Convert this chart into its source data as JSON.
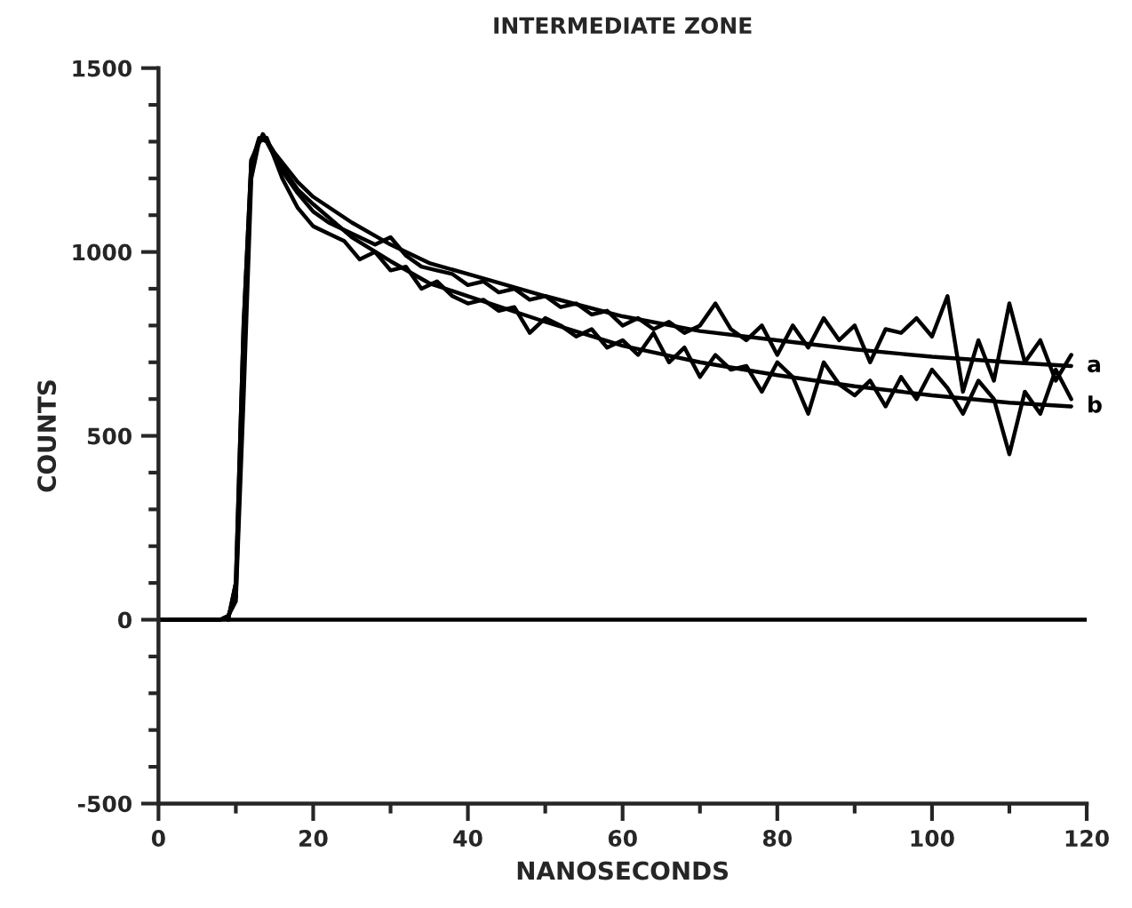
{
  "chart_data": {
    "type": "line",
    "title": "INTERMEDIATE ZONE",
    "xlabel": "NANOSECONDS",
    "ylabel": "COUNTS",
    "xlim": [
      0,
      120
    ],
    "ylim": [
      -500,
      1500
    ],
    "xticks": [
      0,
      {
        "value": 10,
        "label": null
      },
      20,
      {
        "value": 30,
        "label": null
      },
      40,
      {
        "value": 50,
        "label": null
      },
      60,
      {
        "value": 70,
        "label": null
      },
      80,
      {
        "value": 90,
        "label": null
      },
      100,
      {
        "value": 110,
        "label": null
      },
      120
    ],
    "yticks": [
      -500,
      {
        "value": -400,
        "label": null
      },
      {
        "value": -300,
        "label": null
      },
      {
        "value": -200,
        "label": null
      },
      {
        "value": -100,
        "label": null
      },
      0,
      {
        "value": 100,
        "label": null
      },
      {
        "value": 200,
        "label": null
      },
      {
        "value": 300,
        "label": null
      },
      {
        "value": 400,
        "label": null
      },
      500,
      {
        "value": 600,
        "label": null
      },
      {
        "value": 700,
        "label": null
      },
      {
        "value": 800,
        "label": null
      },
      {
        "value": 900,
        "label": null
      },
      1000,
      {
        "value": 1100,
        "label": null
      },
      {
        "value": 1200,
        "label": null
      },
      {
        "value": 1300,
        "label": null
      },
      {
        "value": 1400,
        "label": null
      },
      1500
    ],
    "grid": false,
    "legend": false,
    "marker": "none",
    "line_style": "solid",
    "ref_lines": [
      {
        "axis": "y",
        "value": 0,
        "color": "#000000"
      }
    ],
    "series": [
      {
        "color": "#000000",
        "x": [
          0,
          8,
          9,
          10,
          11,
          12,
          13,
          14,
          16,
          18,
          20,
          22,
          24,
          26,
          28,
          30,
          32,
          34,
          36,
          38,
          40,
          42,
          44,
          46,
          48,
          50,
          52,
          54,
          56,
          58,
          60,
          62,
          64,
          66,
          68,
          70,
          72,
          74,
          76,
          78,
          80,
          82,
          84,
          86,
          88,
          90,
          92,
          94,
          96,
          98,
          100,
          102,
          104,
          106,
          108,
          110,
          112,
          114,
          116,
          118
        ],
        "values": [
          0,
          0,
          10,
          60,
          700,
          1240,
          1310,
          1300,
          1220,
          1160,
          1110,
          1080,
          1060,
          1040,
          1020,
          1040,
          990,
          960,
          950,
          940,
          910,
          920,
          890,
          900,
          870,
          880,
          850,
          860,
          830,
          840,
          800,
          820,
          790,
          810,
          780,
          800,
          860,
          790,
          760,
          800,
          720,
          800,
          740,
          820,
          760,
          800,
          700,
          790,
          780,
          820,
          770,
          880,
          620,
          760,
          650,
          860,
          700,
          760,
          650,
          720
        ]
      },
      {
        "color": "#000000",
        "x": [
          0,
          8,
          9,
          10,
          11,
          12,
          13,
          14,
          16,
          18,
          20,
          22,
          24,
          26,
          28,
          30,
          32,
          34,
          36,
          38,
          40,
          42,
          44,
          46,
          48,
          50,
          52,
          54,
          56,
          58,
          60,
          62,
          64,
          66,
          68,
          70,
          72,
          74,
          76,
          78,
          80,
          82,
          84,
          86,
          88,
          90,
          92,
          94,
          96,
          98,
          100,
          102,
          104,
          106,
          108,
          110,
          112,
          114,
          116,
          118
        ],
        "values": [
          0,
          0,
          10,
          50,
          600,
          1200,
          1300,
          1310,
          1200,
          1120,
          1070,
          1050,
          1030,
          980,
          1000,
          950,
          960,
          900,
          920,
          880,
          860,
          870,
          840,
          850,
          780,
          820,
          800,
          770,
          790,
          740,
          760,
          720,
          780,
          700,
          740,
          660,
          720,
          680,
          690,
          620,
          700,
          660,
          560,
          700,
          640,
          610,
          650,
          580,
          660,
          600,
          680,
          630,
          560,
          650,
          600,
          450,
          620,
          560,
          680,
          600
        ]
      },
      {
        "name": "a",
        "color": "#000000",
        "x": [
          9,
          10,
          11,
          12,
          13.5,
          15,
          18,
          20,
          25,
          30,
          35,
          40,
          50,
          60,
          70,
          80,
          90,
          100,
          110,
          118
        ],
        "values": [
          0,
          100,
          800,
          1250,
          1320,
          1270,
          1190,
          1150,
          1080,
          1020,
          970,
          940,
          880,
          825,
          785,
          760,
          735,
          715,
          700,
          690
        ]
      },
      {
        "name": "b",
        "color": "#000000",
        "x": [
          9,
          10,
          11,
          12,
          13.5,
          15,
          18,
          20,
          25,
          30,
          35,
          40,
          50,
          60,
          70,
          80,
          90,
          100,
          110,
          118
        ],
        "values": [
          0,
          100,
          800,
          1250,
          1320,
          1260,
          1170,
          1130,
          1040,
          975,
          915,
          880,
          810,
          745,
          700,
          665,
          635,
          610,
          590,
          580
        ]
      }
    ]
  }
}
